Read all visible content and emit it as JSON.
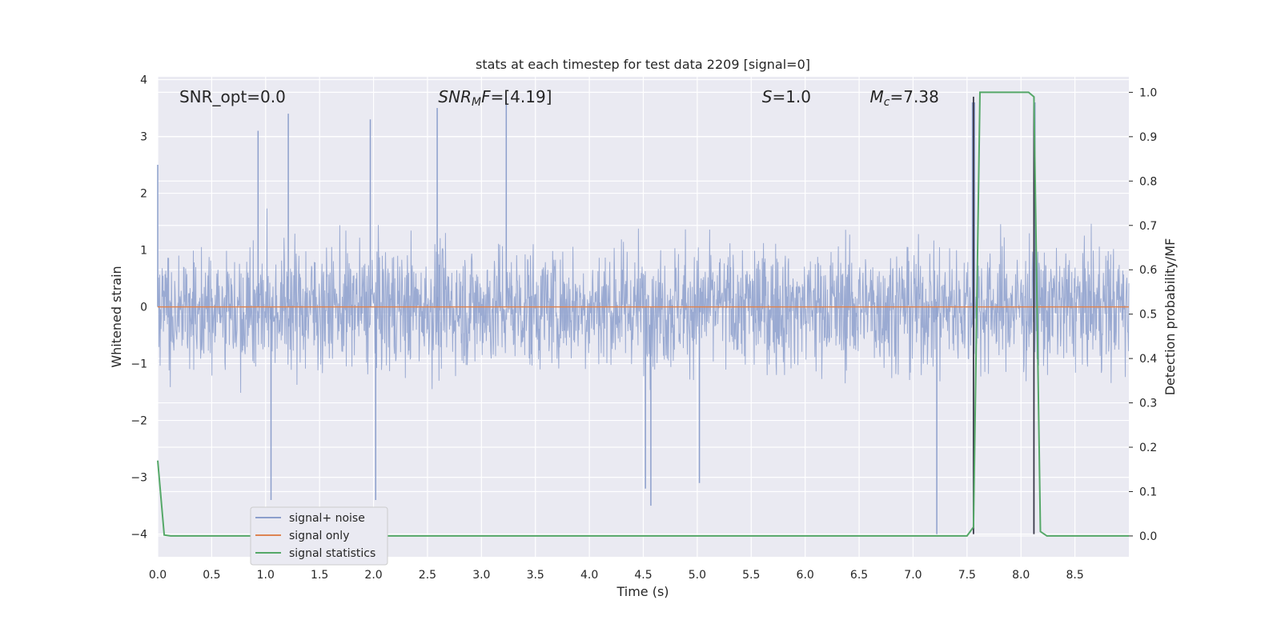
{
  "chart_data": {
    "type": "line",
    "title": "stats at each timestep for test data 2209 [signal=0]",
    "xlabel": "Time (s)",
    "ylabel": "Whitened strain",
    "y2label": "Detection probability/MF",
    "xlim": [
      0,
      9.0
    ],
    "ylim": [
      -4.4,
      4.05
    ],
    "y2lim": [
      -0.047,
      1.035
    ],
    "x_ticks": [
      0.0,
      0.5,
      1.0,
      1.5,
      2.0,
      2.5,
      3.0,
      3.5,
      4.0,
      4.5,
      5.0,
      5.5,
      6.0,
      6.5,
      7.0,
      7.5,
      8.0,
      8.5
    ],
    "x_tick_labels": [
      "0.0",
      "0.5",
      "1.0",
      "1.5",
      "2.0",
      "2.5",
      "3.0",
      "3.5",
      "4.0",
      "4.5",
      "5.0",
      "5.5",
      "6.0",
      "6.5",
      "7.0",
      "7.5",
      "8.0",
      "8.5"
    ],
    "y_ticks": [
      -4,
      -3,
      -2,
      -1,
      0,
      1,
      2,
      3,
      4
    ],
    "y_tick_labels": [
      "−4",
      "−3",
      "−2",
      "−1",
      "0",
      "1",
      "2",
      "3",
      "4"
    ],
    "y2_ticks": [
      0.0,
      0.1,
      0.2,
      0.3,
      0.4,
      0.5,
      0.6,
      0.7,
      0.8,
      0.9,
      1.0
    ],
    "y2_tick_labels": [
      "0.0",
      "0.1",
      "0.2",
      "0.3",
      "0.4",
      "0.5",
      "0.6",
      "0.7",
      "0.8",
      "0.9",
      "1.0"
    ],
    "grid": true,
    "legend_position": "lower-left",
    "annotations": [
      {
        "text": "SNR_opt=0.0",
        "x": 0.2
      },
      {
        "text": "SNR_MF=[4.19]",
        "x": 2.6
      },
      {
        "text": "S=1.0",
        "x": 5.6
      },
      {
        "text": "M_c=7.38",
        "x": 6.6
      }
    ],
    "series": [
      {
        "name": "signal+ noise",
        "axis": "left",
        "color": "#8c9fcc",
        "description_points": "dense noise trace with typical band ±1.7 and spikes to about ±3.6; notable extremes",
        "x": [
          0.0,
          0.93,
          1.05,
          1.21,
          1.97,
          2.02,
          2.59,
          3.23,
          4.52,
          4.57,
          5.02,
          7.22,
          7.55,
          7.57,
          8.13
        ],
        "y": [
          2.5,
          3.1,
          -3.4,
          3.4,
          3.3,
          -3.4,
          3.5,
          3.7,
          -3.2,
          -3.5,
          -3.1,
          -4.0,
          3.6,
          3.6,
          3.6
        ]
      },
      {
        "name": "signal only",
        "axis": "left",
        "color": "#dd8452",
        "x": [
          0.0,
          9.0
        ],
        "y": [
          0.0,
          0.0
        ]
      },
      {
        "name": "signal statistics",
        "axis": "right",
        "color": "#55a868",
        "x": [
          0.0,
          0.06,
          0.12,
          4.0,
          7.5,
          7.56,
          7.62,
          8.07,
          8.12,
          8.18,
          8.24,
          9.0
        ],
        "y": [
          0.17,
          0.002,
          0.0,
          0.0,
          0.0,
          0.02,
          1.0,
          1.0,
          0.99,
          0.01,
          0.0,
          0.0
        ]
      }
    ],
    "vlines": [
      7.56,
      8.12
    ]
  }
}
